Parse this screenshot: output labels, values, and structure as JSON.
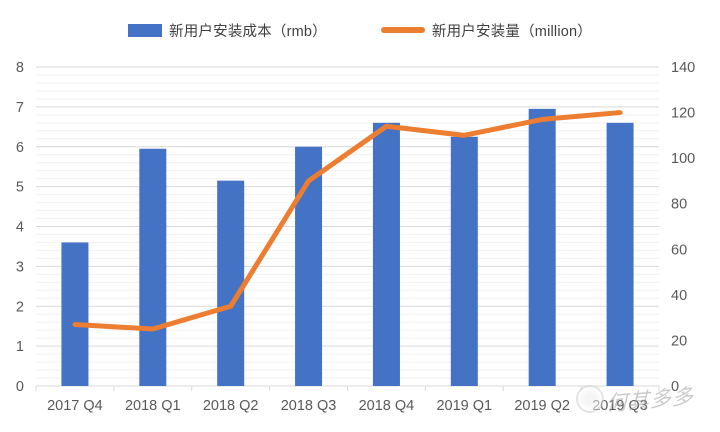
{
  "watermark": {
    "text": "何其多多"
  },
  "chart_data": {
    "type": "combo-bar-line",
    "title": "",
    "categories": [
      "2017 Q4",
      "2018 Q1",
      "2018 Q2",
      "2018 Q3",
      "2018 Q4",
      "2019 Q1",
      "2019 Q2",
      "2019 Q3"
    ],
    "series": [
      {
        "name": "新用户安装成本（rmb）",
        "type": "bar",
        "axis": "left",
        "color": "#4472C4",
        "values": [
          3.6,
          5.95,
          5.15,
          6.0,
          6.6,
          6.25,
          6.95,
          6.6
        ]
      },
      {
        "name": "新用户安装量（million）",
        "type": "line",
        "axis": "right",
        "color": "#ED7D31",
        "values": [
          27,
          25,
          35,
          90,
          114,
          110,
          117,
          120
        ]
      }
    ],
    "left_axis": {
      "ylim": [
        0,
        8
      ],
      "tick_step": 1,
      "tick_labels": [
        "0",
        "1",
        "2",
        "3",
        "4",
        "5",
        "6",
        "7",
        "8"
      ]
    },
    "right_axis": {
      "ylim": [
        0,
        140
      ],
      "tick_step": 20,
      "tick_labels": [
        "0",
        "20",
        "40",
        "60",
        "80",
        "100",
        "120",
        "140"
      ]
    },
    "grid": {
      "major": true,
      "minor": true,
      "minor_step_left": 0.2
    },
    "legend_position": "top"
  }
}
